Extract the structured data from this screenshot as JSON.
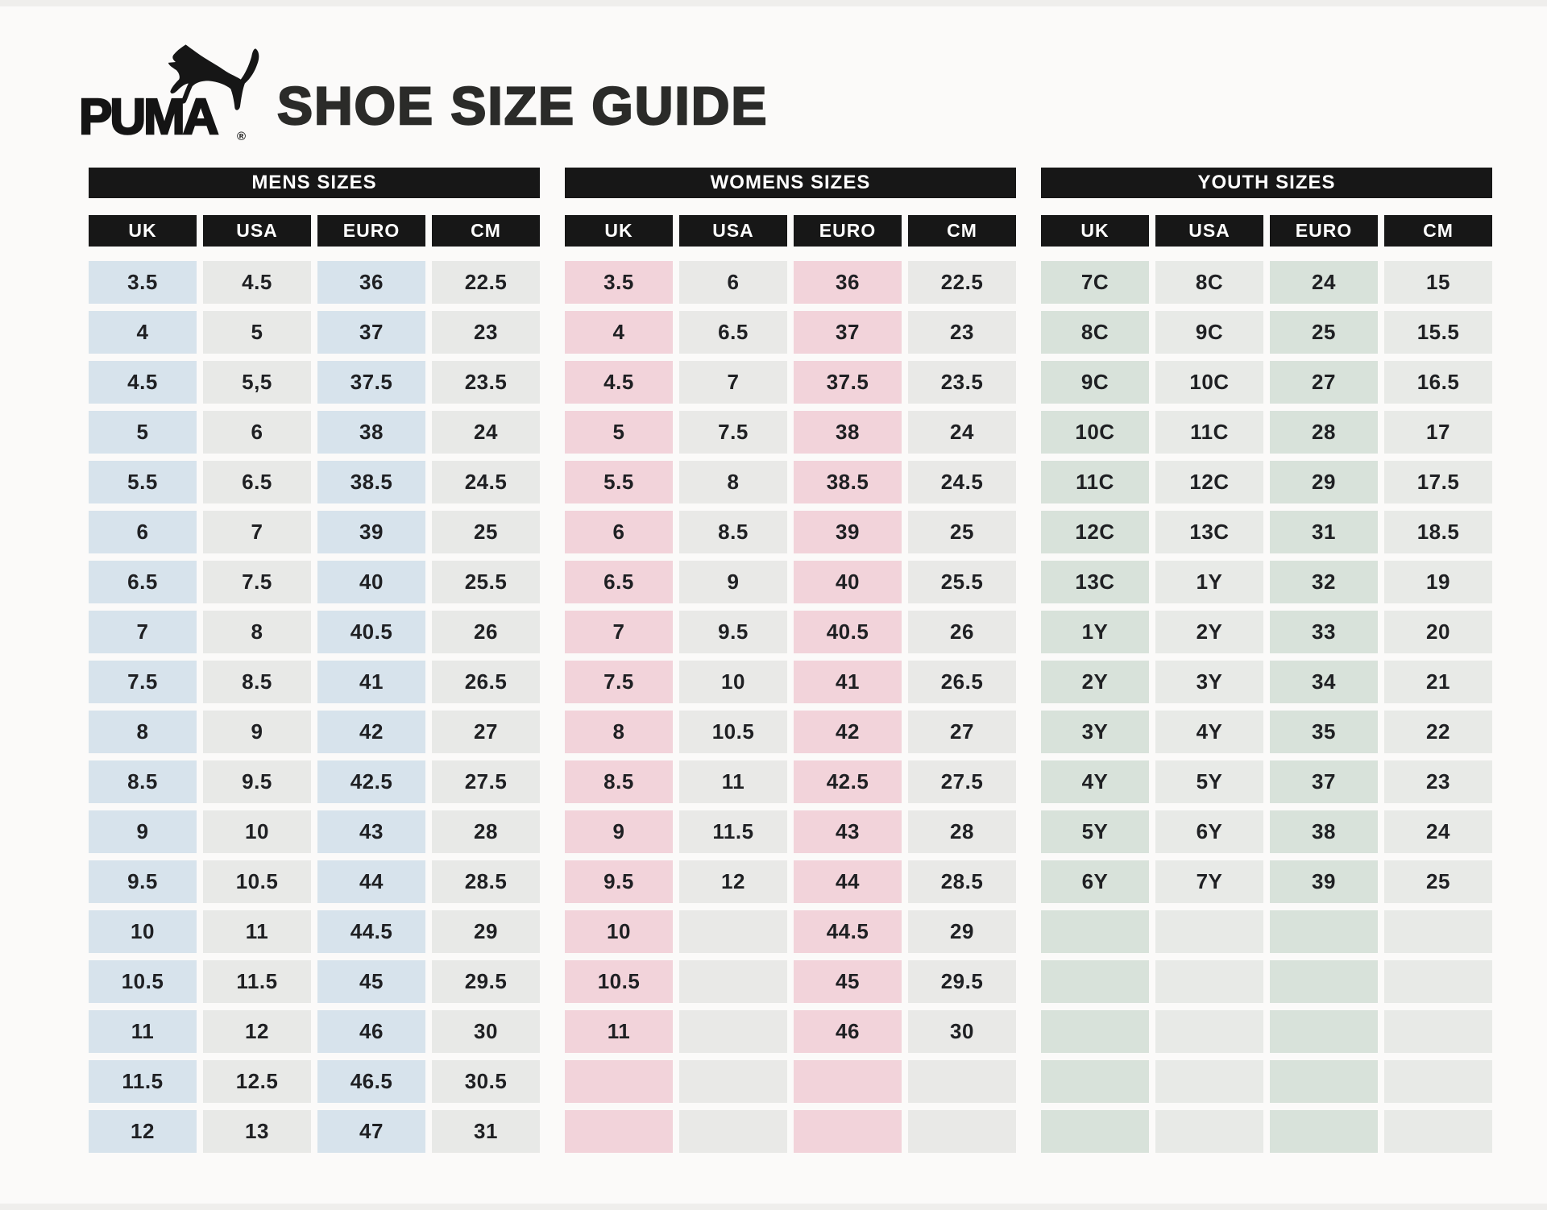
{
  "header": {
    "brand": "PUMA",
    "registered": "®",
    "title": "SHOE SIZE GUIDE"
  },
  "columns": [
    "UK",
    "USA",
    "EURO",
    "CM"
  ],
  "tables": [
    {
      "id": "mens",
      "title": "MENS SIZES",
      "accent": "#d7e3ec",
      "neutral": "#e8e9e7",
      "rows": [
        [
          "3.5",
          "4.5",
          "36",
          "22.5"
        ],
        [
          "4",
          "5",
          "37",
          "23"
        ],
        [
          "4.5",
          "5,5",
          "37.5",
          "23.5"
        ],
        [
          "5",
          "6",
          "38",
          "24"
        ],
        [
          "5.5",
          "6.5",
          "38.5",
          "24.5"
        ],
        [
          "6",
          "7",
          "39",
          "25"
        ],
        [
          "6.5",
          "7.5",
          "40",
          "25.5"
        ],
        [
          "7",
          "8",
          "40.5",
          "26"
        ],
        [
          "7.5",
          "8.5",
          "41",
          "26.5"
        ],
        [
          "8",
          "9",
          "42",
          "27"
        ],
        [
          "8.5",
          "9.5",
          "42.5",
          "27.5"
        ],
        [
          "9",
          "10",
          "43",
          "28"
        ],
        [
          "9.5",
          "10.5",
          "44",
          "28.5"
        ],
        [
          "10",
          "11",
          "44.5",
          "29"
        ],
        [
          "10.5",
          "11.5",
          "45",
          "29.5"
        ],
        [
          "11",
          "12",
          "46",
          "30"
        ],
        [
          "11.5",
          "12.5",
          "46.5",
          "30.5"
        ],
        [
          "12",
          "13",
          "47",
          "31"
        ]
      ]
    },
    {
      "id": "womens",
      "title": "WOMENS SIZES",
      "accent": "#f2d3da",
      "neutral": "#e9e9e7",
      "rows": [
        [
          "3.5",
          "6",
          "36",
          "22.5"
        ],
        [
          "4",
          "6.5",
          "37",
          "23"
        ],
        [
          "4.5",
          "7",
          "37.5",
          "23.5"
        ],
        [
          "5",
          "7.5",
          "38",
          "24"
        ],
        [
          "5.5",
          "8",
          "38.5",
          "24.5"
        ],
        [
          "6",
          "8.5",
          "39",
          "25"
        ],
        [
          "6.5",
          "9",
          "40",
          "25.5"
        ],
        [
          "7",
          "9.5",
          "40.5",
          "26"
        ],
        [
          "7.5",
          "10",
          "41",
          "26.5"
        ],
        [
          "8",
          "10.5",
          "42",
          "27"
        ],
        [
          "8.5",
          "11",
          "42.5",
          "27.5"
        ],
        [
          "9",
          "11.5",
          "43",
          "28"
        ],
        [
          "9.5",
          "12",
          "44",
          "28.5"
        ],
        [
          "10",
          "",
          "44.5",
          "29"
        ],
        [
          "10.5",
          "",
          "45",
          "29.5"
        ],
        [
          "11",
          "",
          "46",
          "30"
        ],
        [
          "",
          "",
          "",
          ""
        ],
        [
          "",
          "",
          "",
          ""
        ]
      ]
    },
    {
      "id": "youth",
      "title": "YOUTH SIZES",
      "accent": "#d8e2da",
      "neutral": "#e8eae7",
      "rows": [
        [
          "7C",
          "8C",
          "24",
          "15"
        ],
        [
          "8C",
          "9C",
          "25",
          "15.5"
        ],
        [
          "9C",
          "10C",
          "27",
          "16.5"
        ],
        [
          "10C",
          "11C",
          "28",
          "17"
        ],
        [
          "11C",
          "12C",
          "29",
          "17.5"
        ],
        [
          "12C",
          "13C",
          "31",
          "18.5"
        ],
        [
          "13C",
          "1Y",
          "32",
          "19"
        ],
        [
          "1Y",
          "2Y",
          "33",
          "20"
        ],
        [
          "2Y",
          "3Y",
          "34",
          "21"
        ],
        [
          "3Y",
          "4Y",
          "35",
          "22"
        ],
        [
          "4Y",
          "5Y",
          "37",
          "23"
        ],
        [
          "5Y",
          "6Y",
          "38",
          "24"
        ],
        [
          "6Y",
          "7Y",
          "39",
          "25"
        ],
        [
          "",
          "",
          "",
          ""
        ],
        [
          "",
          "",
          "",
          ""
        ],
        [
          "",
          "",
          "",
          ""
        ],
        [
          "",
          "",
          "",
          ""
        ],
        [
          "",
          "",
          "",
          ""
        ]
      ]
    }
  ],
  "colors": {
    "page_bg": "#fbfaf9",
    "header_bg": "#171717",
    "header_text": "#ffffff",
    "cell_text": "#1f2023"
  }
}
